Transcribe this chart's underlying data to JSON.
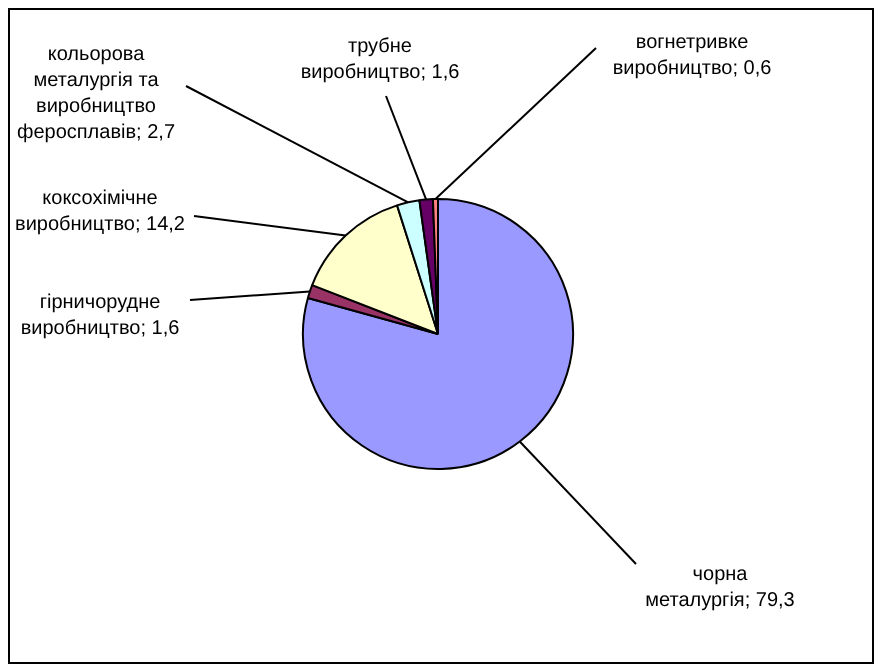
{
  "chart_data": {
    "type": "pie",
    "categories": [
      "чорна металургія",
      "гірничорудне виробництво",
      "коксохімічне виробництво",
      "кольорова металургія та виробництво феросплавів",
      "трубне виробництво",
      "вогнетривке виробництво"
    ],
    "values": [
      79.3,
      1.6,
      14.2,
      2.7,
      1.6,
      0.6
    ],
    "colors": [
      "#9999ff",
      "#993366",
      "#ffffcc",
      "#ccffff",
      "#660066",
      "#ff8080"
    ],
    "value_labels": [
      "79,3",
      "1,6",
      "14,2",
      "2,7",
      "1,6",
      "0,6"
    ],
    "legend": false
  }
}
